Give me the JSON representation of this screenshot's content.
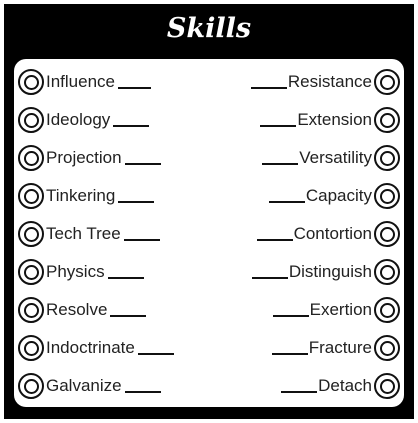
{
  "title": "Skills",
  "left_skills": [
    {
      "label": "Influence"
    },
    {
      "label": "Ideology"
    },
    {
      "label": "Projection"
    },
    {
      "label": "Tinkering"
    },
    {
      "label": "Tech Tree"
    },
    {
      "label": "Physics"
    },
    {
      "label": "Resolve"
    },
    {
      "label": "Indoctrinate"
    },
    {
      "label": "Galvanize"
    }
  ],
  "right_skills": [
    {
      "label": "Resistance"
    },
    {
      "label": "Extension"
    },
    {
      "label": "Versatility"
    },
    {
      "label": "Capacity"
    },
    {
      "label": "Contortion"
    },
    {
      "label": "Distinguish"
    },
    {
      "label": "Exertion"
    },
    {
      "label": "Fracture"
    },
    {
      "label": "Detach"
    }
  ]
}
